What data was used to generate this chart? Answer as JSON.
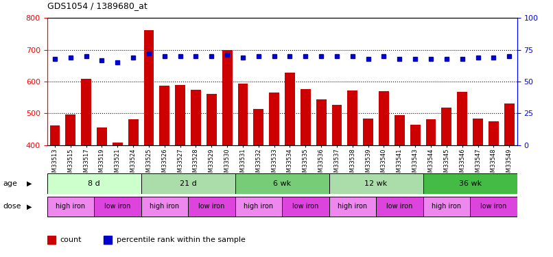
{
  "title": "GDS1054 / 1389680_at",
  "samples": [
    "GSM33513",
    "GSM33515",
    "GSM33517",
    "GSM33519",
    "GSM33521",
    "GSM33524",
    "GSM33525",
    "GSM33526",
    "GSM33527",
    "GSM33528",
    "GSM33529",
    "GSM33530",
    "GSM33531",
    "GSM33532",
    "GSM33533",
    "GSM33534",
    "GSM33535",
    "GSM33536",
    "GSM33537",
    "GSM33538",
    "GSM33539",
    "GSM33540",
    "GSM33541",
    "GSM33543",
    "GSM33544",
    "GSM33545",
    "GSM33546",
    "GSM33547",
    "GSM33548",
    "GSM33549"
  ],
  "counts": [
    462,
    497,
    608,
    455,
    408,
    481,
    762,
    587,
    590,
    575,
    562,
    700,
    593,
    515,
    565,
    628,
    576,
    544,
    527,
    572,
    483,
    570,
    494,
    465,
    481,
    519,
    567,
    483,
    476,
    531
  ],
  "percentile_ranks": [
    68,
    69,
    70,
    67,
    65,
    69,
    72,
    70,
    70,
    70,
    70,
    71,
    69,
    70,
    70,
    70,
    70,
    70,
    70,
    70,
    68,
    70,
    68,
    68,
    68,
    68,
    68,
    69,
    69,
    70
  ],
  "ylim_left": [
    400,
    800
  ],
  "ylim_right": [
    0,
    100
  ],
  "yticks_left": [
    400,
    500,
    600,
    700,
    800
  ],
  "yticks_right": [
    0,
    25,
    50,
    75,
    100
  ],
  "bar_color": "#cc0000",
  "dot_color": "#0000cc",
  "bar_bottom": 400,
  "age_groups": [
    {
      "label": "8 d",
      "start": 0,
      "end": 6,
      "color": "#ccffcc"
    },
    {
      "label": "21 d",
      "start": 6,
      "end": 12,
      "color": "#aaddaa"
    },
    {
      "label": "6 wk",
      "start": 12,
      "end": 18,
      "color": "#77cc77"
    },
    {
      "label": "12 wk",
      "start": 18,
      "end": 24,
      "color": "#aaddaa"
    },
    {
      "label": "36 wk",
      "start": 24,
      "end": 30,
      "color": "#44bb44"
    }
  ],
  "dose_groups": [
    {
      "label": "high iron",
      "start": 0,
      "end": 3,
      "color": "#ee88ee"
    },
    {
      "label": "low iron",
      "start": 3,
      "end": 6,
      "color": "#dd44dd"
    },
    {
      "label": "high iron",
      "start": 6,
      "end": 9,
      "color": "#ee88ee"
    },
    {
      "label": "low iron",
      "start": 9,
      "end": 12,
      "color": "#dd44dd"
    },
    {
      "label": "high iron",
      "start": 12,
      "end": 15,
      "color": "#ee88ee"
    },
    {
      "label": "low iron",
      "start": 15,
      "end": 18,
      "color": "#dd44dd"
    },
    {
      "label": "high iron",
      "start": 18,
      "end": 21,
      "color": "#ee88ee"
    },
    {
      "label": "low iron",
      "start": 21,
      "end": 24,
      "color": "#dd44dd"
    },
    {
      "label": "high iron",
      "start": 24,
      "end": 27,
      "color": "#ee88ee"
    },
    {
      "label": "low iron",
      "start": 27,
      "end": 30,
      "color": "#dd44dd"
    }
  ]
}
